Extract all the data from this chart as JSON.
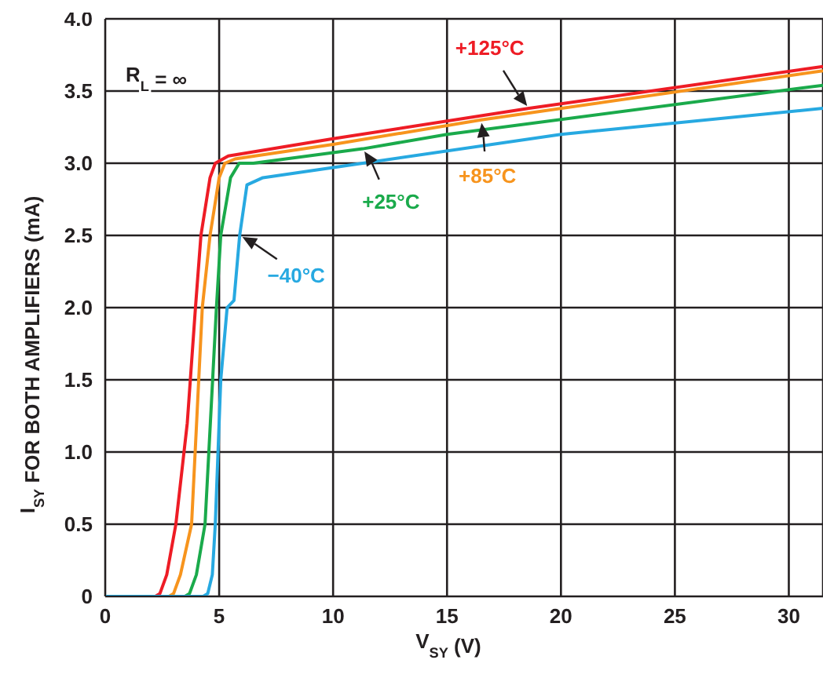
{
  "chart_data": {
    "type": "line",
    "xlabel": "V$_{SY}$ (V)",
    "ylabel": "I$_{SY}$ FOR BOTH AMPLIFIERS (mA)",
    "annotations": [
      "R$_{L}$ = ∞"
    ],
    "xlim": [
      0,
      31.5
    ],
    "xticks": [
      0,
      5,
      10,
      15,
      20,
      25,
      30
    ],
    "ylim": [
      0,
      4
    ],
    "yticks": [
      {
        "value": 0,
        "label": "0"
      },
      {
        "value": 0.5,
        "label": "0.5"
      },
      {
        "value": 1,
        "label": "1.0"
      },
      {
        "value": 1.5,
        "label": "1.5"
      },
      {
        "value": 2,
        "label": "2.0"
      },
      {
        "value": 2.5,
        "label": "2.5"
      },
      {
        "value": 3,
        "label": "3.0"
      },
      {
        "value": 3.5,
        "label": "3.5"
      },
      {
        "value": 4,
        "label": "4.0"
      }
    ],
    "grid": true,
    "legend": false,
    "marker": "none",
    "line_style": "solid",
    "series": [
      {
        "name": "+125°C",
        "color": "#ee1c25",
        "x": [
          0,
          2.2,
          2.4,
          2.7,
          3.1,
          3.6,
          3.96,
          4.2,
          4.6,
          4.83,
          5.4,
          10,
          18.6,
          31.5
        ],
        "values": [
          0,
          0,
          0.02,
          0.15,
          0.5,
          1.2,
          2.0,
          2.5,
          2.9,
          3.0,
          3.05,
          3.17,
          3.38,
          3.67
        ]
      },
      {
        "name": "+85°C",
        "color": "#f7941d",
        "x": [
          0,
          2.8,
          3.0,
          3.3,
          3.79,
          4.26,
          4.6,
          5.0,
          5.25,
          5.7,
          10,
          16.5,
          31.5
        ],
        "values": [
          0,
          0,
          0.02,
          0.15,
          0.5,
          2.0,
          2.5,
          2.9,
          3.0,
          3.03,
          3.13,
          3.3,
          3.64
        ]
      },
      {
        "name": "+25°C",
        "color": "#1aaa4b",
        "x": [
          0,
          3.5,
          3.7,
          4.0,
          4.38,
          4.88,
          5.07,
          5.5,
          5.88,
          6.5,
          11.3,
          15,
          31.5
        ],
        "values": [
          0,
          0,
          0.02,
          0.15,
          0.5,
          2.0,
          2.5,
          2.9,
          3.0,
          3.0,
          3.1,
          3.2,
          3.54
        ]
      },
      {
        "name": "−40°C",
        "color": "#27a9e1",
        "x": [
          0,
          4.3,
          4.5,
          4.7,
          4.83,
          5.07,
          5.35,
          5.65,
          5.9,
          6.22,
          6.92,
          10,
          20,
          31.5
        ],
        "values": [
          0,
          0,
          0.02,
          0.15,
          0.5,
          1.5,
          2.0,
          2.05,
          2.5,
          2.85,
          2.9,
          2.97,
          3.2,
          3.38
        ]
      }
    ]
  }
}
